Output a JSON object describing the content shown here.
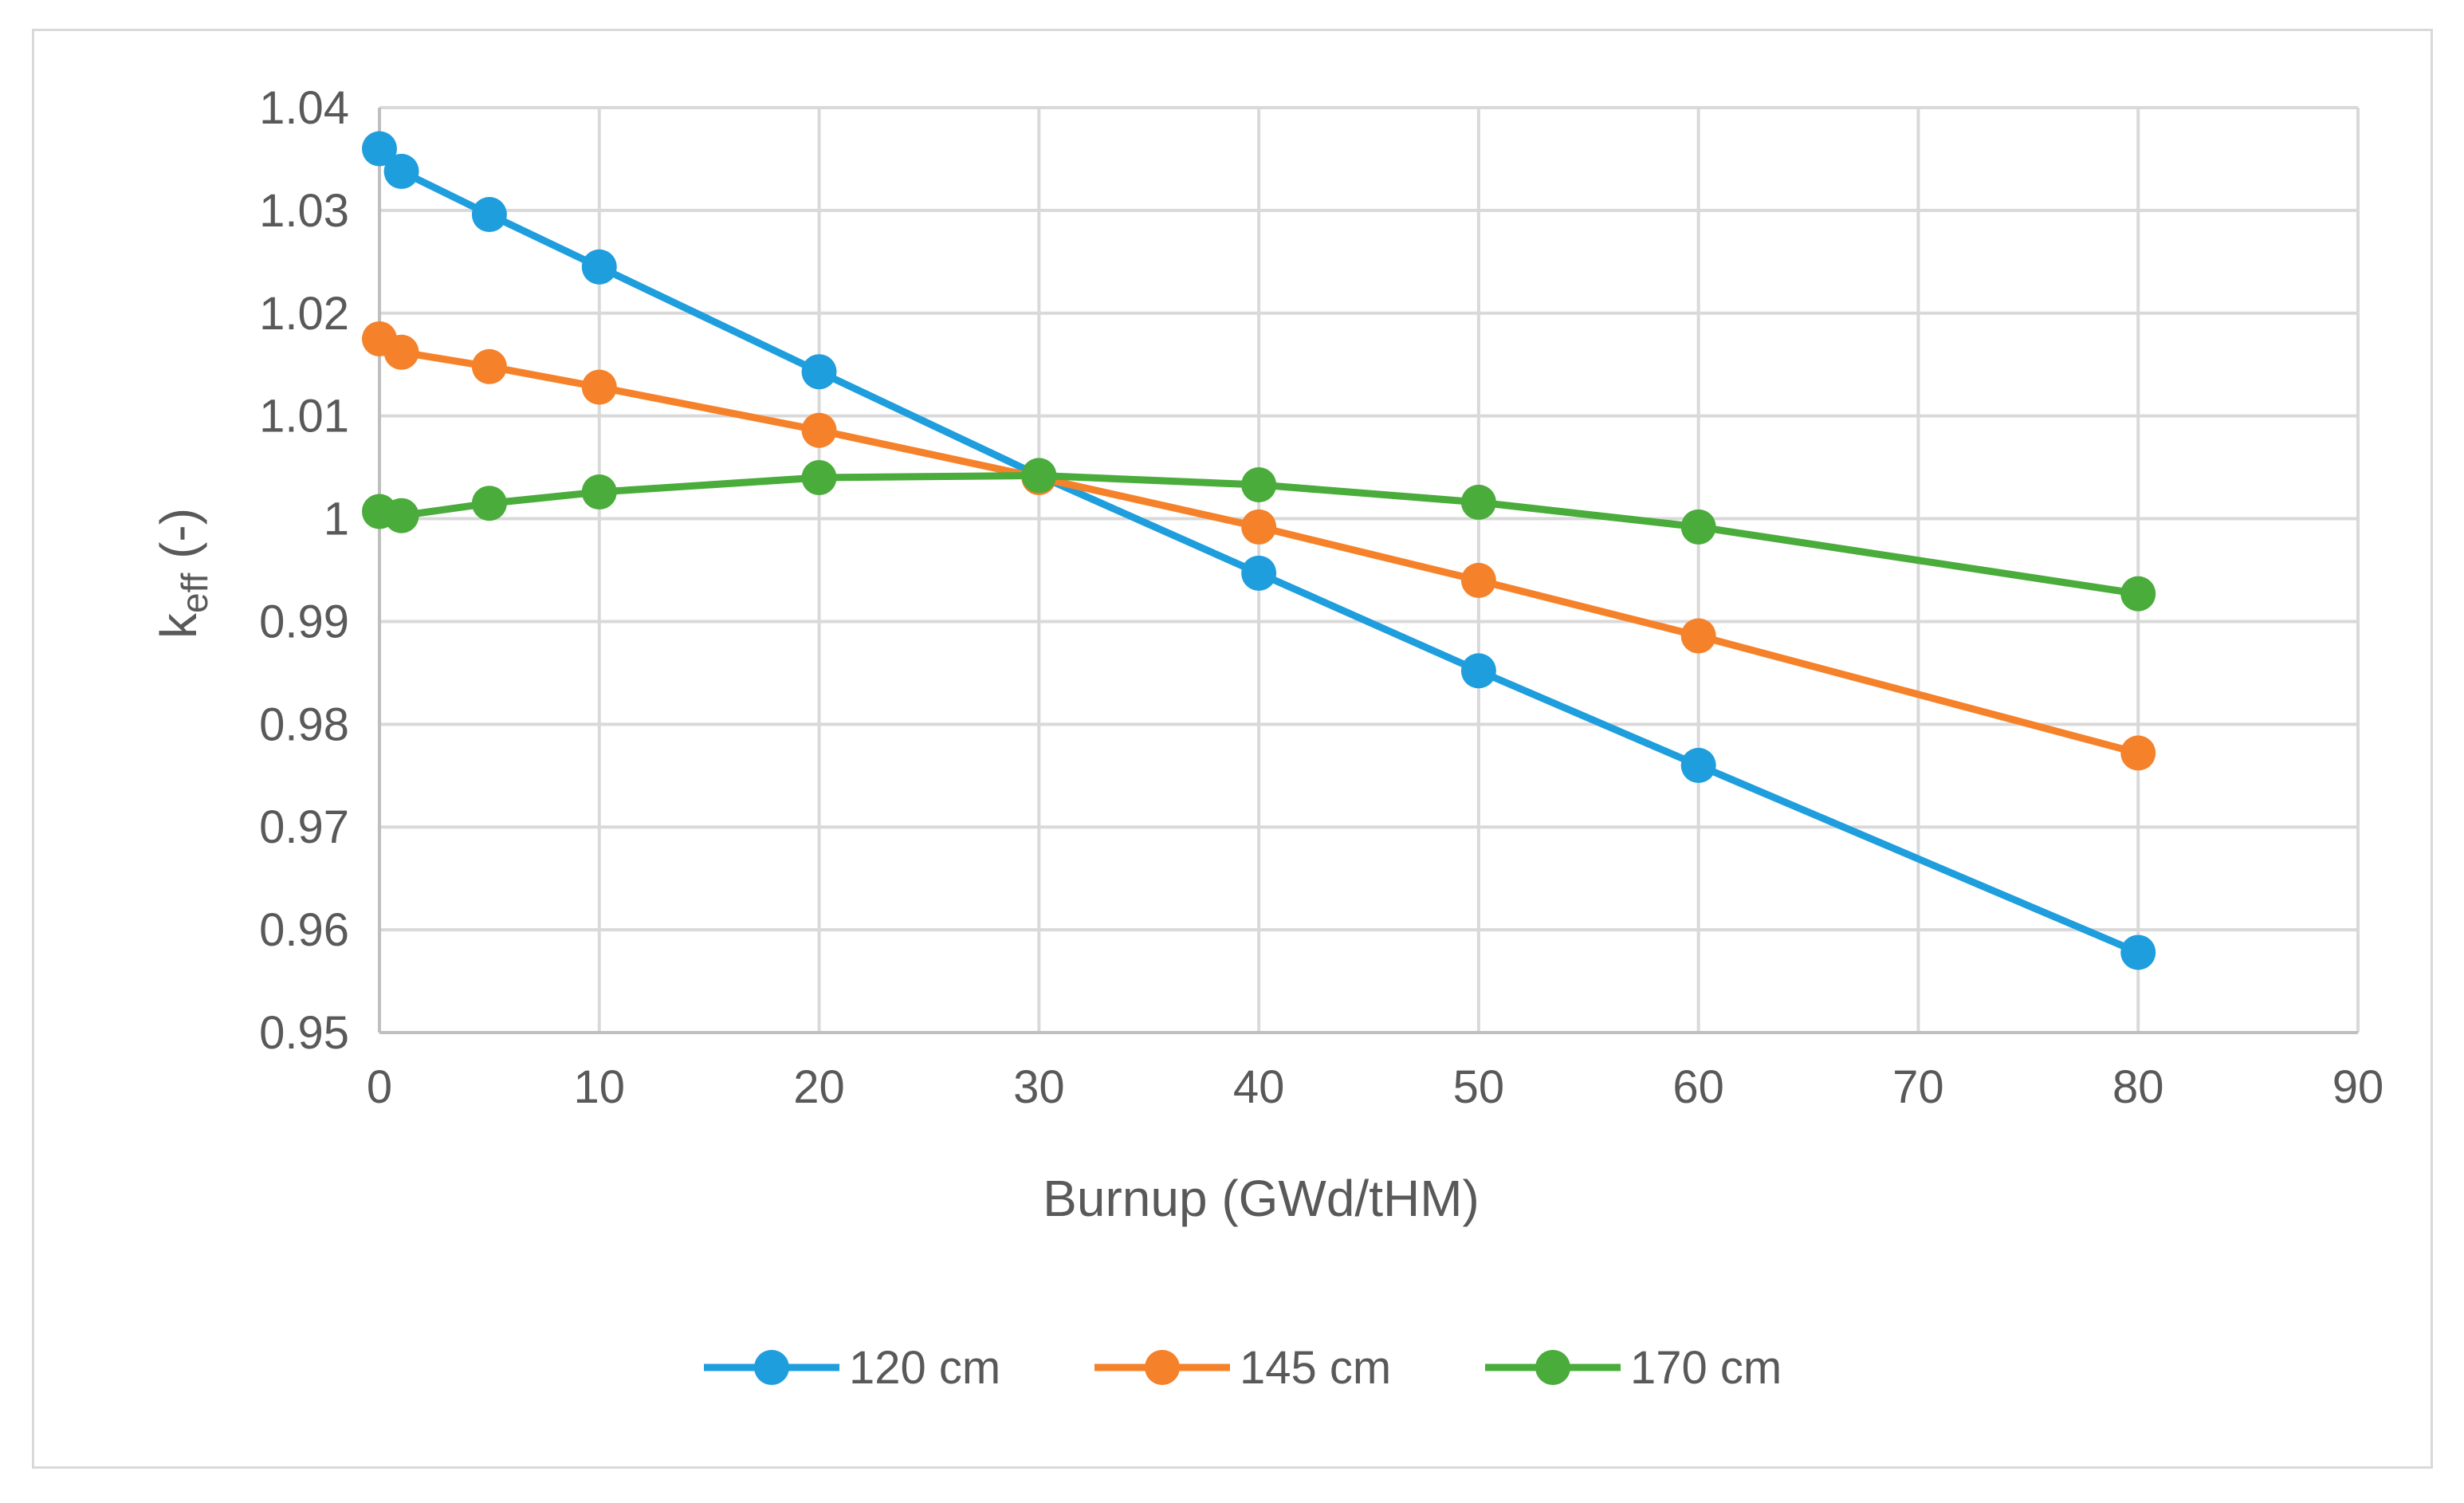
{
  "chart_data": {
    "type": "line",
    "title": "",
    "xlabel": "Burnup (GWd/tHM)",
    "ylabel_main": "k",
    "ylabel_sub": "eff",
    "ylabel_suffix": " (-)",
    "xlim": [
      0,
      90
    ],
    "ylim": [
      0.95,
      1.04
    ],
    "grid": true,
    "legend_position": "bottom",
    "x_ticks": [
      0,
      10,
      20,
      30,
      40,
      50,
      60,
      70,
      80,
      90
    ],
    "x_tick_labels": [
      "0",
      "10",
      "20",
      "30",
      "40",
      "50",
      "60",
      "70",
      "80",
      "90"
    ],
    "y_ticks": [
      0.95,
      0.96,
      0.97,
      0.98,
      0.99,
      1.0,
      1.01,
      1.02,
      1.03,
      1.04
    ],
    "y_tick_labels": [
      "0.95",
      "0.96",
      "0.97",
      "0.98",
      "0.99",
      "1",
      "1.01",
      "1.02",
      "1.03",
      "1.04"
    ],
    "x": [
      0,
      1,
      5,
      10,
      20,
      30,
      40,
      50,
      60,
      80
    ],
    "series": [
      {
        "name": "120 cm",
        "color": "#1f9ede",
        "values": [
          1.036,
          1.0338,
          1.0296,
          1.0245,
          1.0143,
          1.0042,
          0.9947,
          0.9852,
          0.976,
          0.9578
        ]
      },
      {
        "name": "145 cm",
        "color": "#f5822a",
        "values": [
          1.0175,
          1.0162,
          1.0148,
          1.0128,
          1.0086,
          1.004,
          0.9992,
          0.994,
          0.9886,
          0.9772
        ]
      },
      {
        "name": "170 cm",
        "color": "#4aac3b",
        "values": [
          1.0007,
          1.0003,
          1.0015,
          1.0026,
          1.004,
          1.0042,
          1.0033,
          1.0016,
          0.9992,
          0.9927
        ]
      }
    ]
  }
}
